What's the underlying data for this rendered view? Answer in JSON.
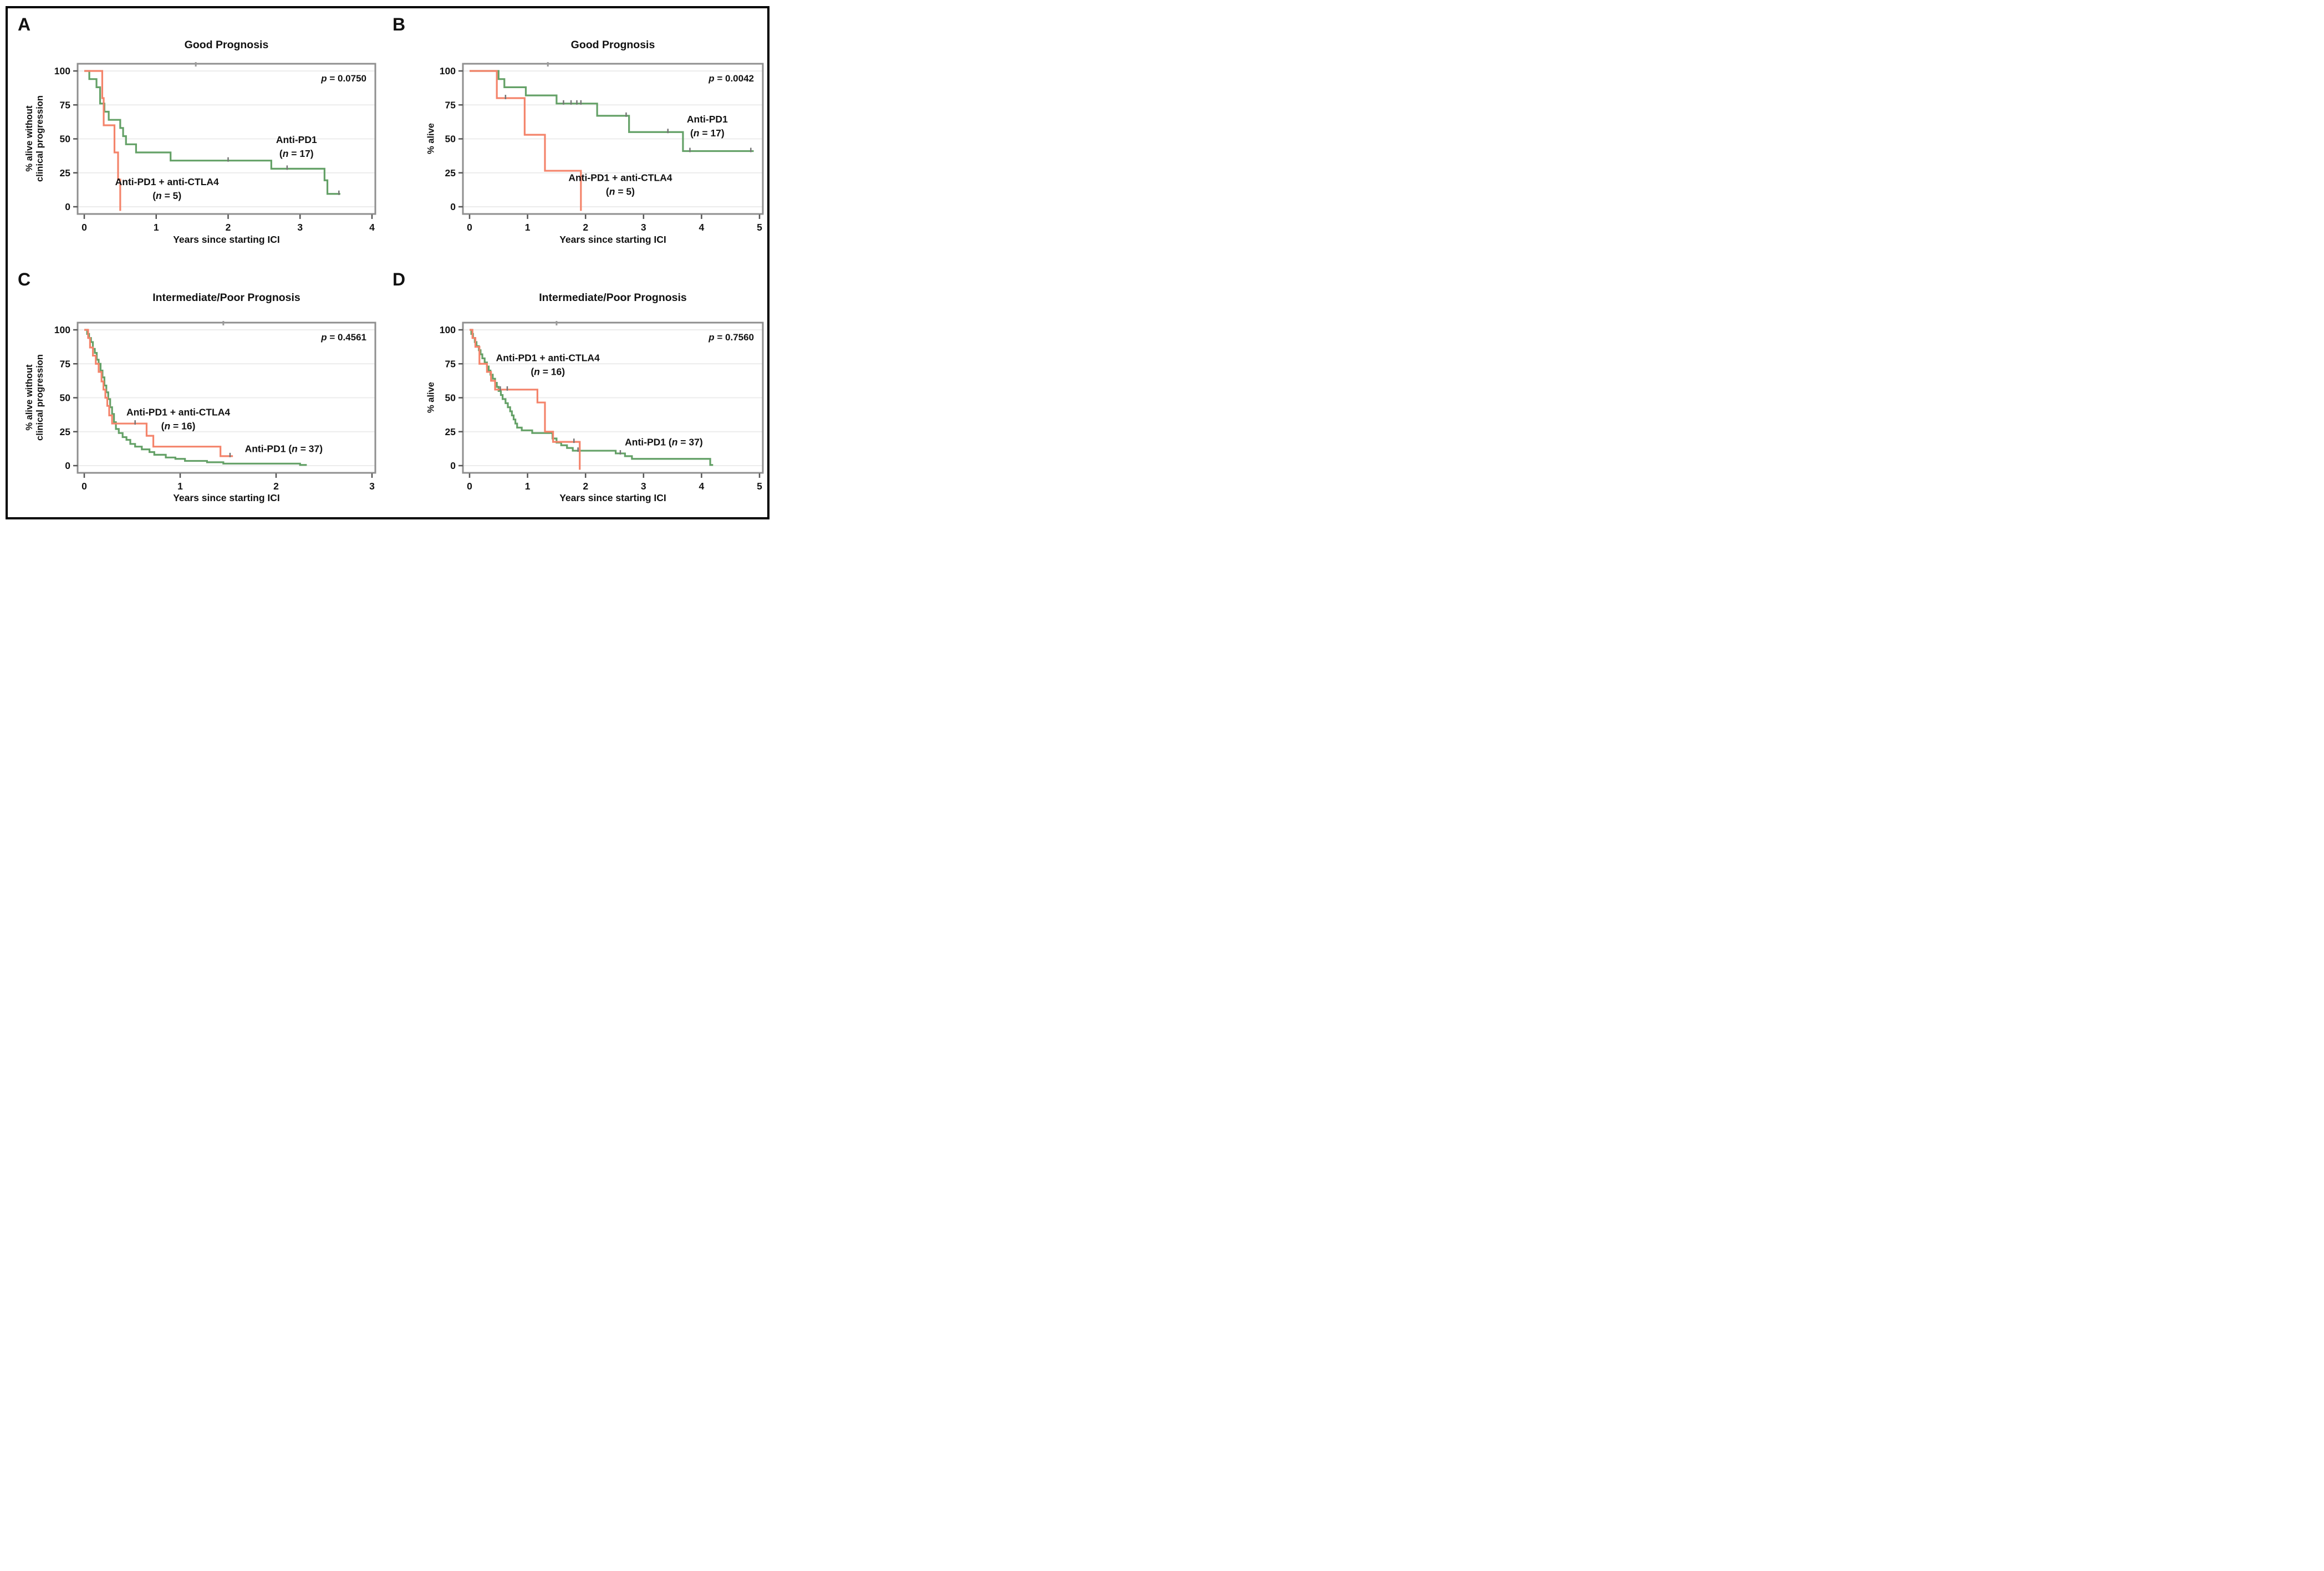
{
  "style": {
    "background": "#ffffff",
    "border_color": "#000000",
    "text_color": "#111111",
    "frame_color": "#8f8f8f",
    "grid_color": "#ececec",
    "censor_color": "#757575",
    "top_mark_color": "#9a9a9a",
    "axis_tick_color": "#555555",
    "green": "#64a167",
    "orange": "#f4846b"
  },
  "chart_data": [
    {
      "id": "A",
      "col": "A",
      "row": "r1",
      "type": "line",
      "km": true,
      "panel_label": "A",
      "title": "Good Prognosis",
      "p": "0.0750",
      "p_prefix": "p",
      "p_text": " = 0.0750",
      "xlabel": "Years since starting ICI",
      "ylabel_lines": [
        "% alive without",
        "clinical progression"
      ],
      "xlim": [
        0,
        4
      ],
      "xticks": [
        0,
        1,
        2,
        3,
        4
      ],
      "ylim": [
        0,
        100
      ],
      "yticks": [
        0,
        25,
        50,
        75,
        100
      ],
      "grid": true,
      "legend": "inline-annotations",
      "top_mark_x": 1.55,
      "series": [
        {
          "name": "Anti-PD1",
          "n": 17,
          "color": "#64a167",
          "points": [
            [
              0,
              100
            ],
            [
              0.07,
              94
            ],
            [
              0.17,
              88
            ],
            [
              0.22,
              76
            ],
            [
              0.28,
              70
            ],
            [
              0.34,
              64
            ],
            [
              0.5,
              58
            ],
            [
              0.54,
              52
            ],
            [
              0.58,
              46
            ],
            [
              0.72,
              40
            ],
            [
              1.2,
              34
            ],
            [
              2.6,
              28
            ],
            [
              3.34,
              19.5
            ],
            [
              3.38,
              9.5
            ],
            [
              3.56,
              9.5
            ]
          ],
          "censors": [
            [
              2.0,
              34
            ],
            [
              2.82,
              28
            ],
            [
              3.54,
              9.5
            ]
          ]
        },
        {
          "name": "Anti-PD1 + anti-CTLA4",
          "n": 5,
          "color": "#f4846b",
          "points": [
            [
              0,
              100
            ],
            [
              0.25,
              80
            ],
            [
              0.27,
              60
            ],
            [
              0.42,
              40
            ],
            [
              0.47,
              20
            ],
            [
              0.5,
              -3
            ]
          ],
          "censors": []
        }
      ],
      "labels": [
        {
          "text": "Anti-PD1",
          "n": "17",
          "layout": "stacked",
          "x": 2.95,
          "y": 47
        },
        {
          "text": "Anti-PD1 + anti-CTLA4",
          "n": "5",
          "layout": "stacked",
          "x": 1.15,
          "y": 16
        }
      ]
    },
    {
      "id": "B",
      "col": "B",
      "row": "r1",
      "type": "line",
      "km": true,
      "panel_label": "B",
      "title": "Good Prognosis",
      "p": "0.0042",
      "p_prefix": "p",
      "p_text": " = 0.0042",
      "xlabel": "Years since starting ICI",
      "ylabel_lines": [
        "% alive"
      ],
      "xlim": [
        0,
        5
      ],
      "xticks": [
        0,
        1,
        2,
        3,
        4,
        5
      ],
      "ylim": [
        0,
        100
      ],
      "yticks": [
        0,
        25,
        50,
        75,
        100
      ],
      "grid": true,
      "legend": "inline-annotations",
      "top_mark_x": 1.35,
      "series": [
        {
          "name": "Anti-PD1",
          "n": 17,
          "color": "#64a167",
          "points": [
            [
              0,
              100
            ],
            [
              0.5,
              94
            ],
            [
              0.6,
              88
            ],
            [
              0.97,
              82
            ],
            [
              1.5,
              76
            ],
            [
              2.2,
              67
            ],
            [
              2.75,
              55
            ],
            [
              3.68,
              41
            ],
            [
              4.9,
              41
            ]
          ],
          "censors": [
            [
              1.62,
              76
            ],
            [
              1.75,
              76
            ],
            [
              1.85,
              76
            ],
            [
              1.92,
              76
            ],
            [
              2.7,
              67
            ],
            [
              3.42,
              55
            ],
            [
              3.8,
              41
            ],
            [
              4.85,
              41
            ]
          ]
        },
        {
          "name": "Anti-PD1 + anti-CTLA4",
          "n": 5,
          "color": "#f4846b",
          "points": [
            [
              0,
              100
            ],
            [
              0.47,
              80
            ],
            [
              0.95,
              53
            ],
            [
              1.3,
              26.5
            ],
            [
              1.92,
              -3
            ]
          ],
          "censors": [
            [
              0.62,
              80
            ]
          ]
        }
      ],
      "labels": [
        {
          "text": "Anti-PD1",
          "n": "17",
          "layout": "stacked",
          "x": 4.1,
          "y": 62
        },
        {
          "text": "Anti-PD1 + anti-CTLA4",
          "n": "5",
          "layout": "stacked",
          "x": 2.6,
          "y": 19
        }
      ]
    },
    {
      "id": "C",
      "col": "A",
      "row": "r2",
      "type": "line",
      "km": true,
      "panel_label": "C",
      "title": "Intermediate/Poor Prognosis",
      "p": "0.4561",
      "p_prefix": "p",
      "p_text": " = 0.4561",
      "xlabel": "Years since starting ICI",
      "ylabel_lines": [
        "% alive without",
        "clinical progression"
      ],
      "xlim": [
        0,
        3
      ],
      "xticks": [
        0,
        1,
        2,
        3
      ],
      "ylim": [
        0,
        100
      ],
      "yticks": [
        0,
        25,
        50,
        75,
        100
      ],
      "grid": true,
      "legend": "inline-annotations",
      "top_mark_x": 1.45,
      "series": [
        {
          "name": "Anti-PD1",
          "n": 37,
          "color": "#64a167",
          "points": [
            [
              0,
              100
            ],
            [
              0.03,
              97
            ],
            [
              0.05,
              94
            ],
            [
              0.07,
              91
            ],
            [
              0.09,
              86
            ],
            [
              0.11,
              83
            ],
            [
              0.13,
              78
            ],
            [
              0.15,
              75
            ],
            [
              0.17,
              70
            ],
            [
              0.19,
              65
            ],
            [
              0.21,
              59
            ],
            [
              0.23,
              54
            ],
            [
              0.25,
              49
            ],
            [
              0.27,
              43
            ],
            [
              0.29,
              38
            ],
            [
              0.31,
              32
            ],
            [
              0.33,
              27
            ],
            [
              0.36,
              24
            ],
            [
              0.4,
              21
            ],
            [
              0.44,
              19
            ],
            [
              0.48,
              16
            ],
            [
              0.53,
              14
            ],
            [
              0.6,
              12
            ],
            [
              0.68,
              10
            ],
            [
              0.73,
              8
            ],
            [
              0.85,
              6
            ],
            [
              0.95,
              5
            ],
            [
              1.05,
              3.5
            ],
            [
              1.28,
              2.5
            ],
            [
              1.45,
              1.5
            ],
            [
              2.25,
              0.5
            ],
            [
              2.32,
              0.5
            ]
          ],
          "censors": []
        },
        {
          "name": "Anti-PD1 + anti-CTLA4",
          "n": 16,
          "color": "#f4846b",
          "points": [
            [
              0,
              100
            ],
            [
              0.04,
              94
            ],
            [
              0.06,
              87
            ],
            [
              0.09,
              81
            ],
            [
              0.12,
              75
            ],
            [
              0.15,
              69
            ],
            [
              0.18,
              62
            ],
            [
              0.2,
              56
            ],
            [
              0.22,
              50
            ],
            [
              0.24,
              44
            ],
            [
              0.26,
              37
            ],
            [
              0.29,
              31
            ],
            [
              0.65,
              22
            ],
            [
              0.72,
              14
            ],
            [
              1.42,
              7
            ],
            [
              1.55,
              7
            ]
          ],
          "censors": [
            [
              0.53,
              31
            ],
            [
              1.52,
              7
            ]
          ]
        }
      ],
      "labels": [
        {
          "text": "Anti-PD1 + anti-CTLA4",
          "n": "16",
          "layout": "stacked",
          "x": 0.98,
          "y": 37
        },
        {
          "text": "Anti-PD1",
          "n": "37",
          "layout": "inline",
          "x": 2.08,
          "y": 10
        }
      ]
    },
    {
      "id": "D",
      "col": "B",
      "row": "r2",
      "type": "line",
      "km": true,
      "panel_label": "D",
      "title": "Intermediate/Poor Prognosis",
      "p": "0.7560",
      "p_prefix": "p",
      "p_text": " = 0.7560",
      "xlabel": "Years since starting ICI",
      "ylabel_lines": [
        "% alive"
      ],
      "xlim": [
        0,
        5
      ],
      "xticks": [
        0,
        1,
        2,
        3,
        4,
        5
      ],
      "ylim": [
        0,
        100
      ],
      "yticks": [
        0,
        25,
        50,
        75,
        100
      ],
      "grid": true,
      "legend": "inline-annotations",
      "top_mark_x": 1.5,
      "series": [
        {
          "name": "Anti-PD1",
          "n": 37,
          "color": "#64a167",
          "points": [
            [
              0,
              100
            ],
            [
              0.03,
              97
            ],
            [
              0.06,
              94
            ],
            [
              0.09,
              91
            ],
            [
              0.12,
              88
            ],
            [
              0.16,
              85
            ],
            [
              0.19,
              82
            ],
            [
              0.22,
              79
            ],
            [
              0.26,
              76
            ],
            [
              0.3,
              73
            ],
            [
              0.33,
              70
            ],
            [
              0.36,
              67
            ],
            [
              0.4,
              64
            ],
            [
              0.44,
              61
            ],
            [
              0.47,
              58
            ],
            [
              0.5,
              55
            ],
            [
              0.54,
              52
            ],
            [
              0.57,
              49
            ],
            [
              0.62,
              46
            ],
            [
              0.66,
              43
            ],
            [
              0.7,
              40
            ],
            [
              0.73,
              37
            ],
            [
              0.76,
              34
            ],
            [
              0.79,
              31
            ],
            [
              0.82,
              28
            ],
            [
              0.9,
              26
            ],
            [
              1.08,
              24
            ],
            [
              1.43,
              20
            ],
            [
              1.5,
              17
            ],
            [
              1.58,
              15
            ],
            [
              1.68,
              13
            ],
            [
              1.78,
              11
            ],
            [
              2.52,
              9
            ],
            [
              2.68,
              7
            ],
            [
              2.8,
              5
            ],
            [
              4.12,
              5
            ],
            [
              4.15,
              0.5
            ],
            [
              4.2,
              0.5
            ]
          ],
          "censors": [
            [
              1.87,
              11
            ],
            [
              2.6,
              9
            ]
          ]
        },
        {
          "name": "Anti-PD1 + anti-CTLA4",
          "n": 16,
          "color": "#f4846b",
          "points": [
            [
              0,
              100
            ],
            [
              0.05,
              94
            ],
            [
              0.1,
              87.5
            ],
            [
              0.17,
              75
            ],
            [
              0.3,
              69
            ],
            [
              0.37,
              62.5
            ],
            [
              0.44,
              56
            ],
            [
              1.17,
              46.5
            ],
            [
              1.3,
              25
            ],
            [
              1.44,
              17.5
            ],
            [
              1.9,
              -3
            ]
          ],
          "censors": [
            [
              0.53,
              56
            ],
            [
              0.65,
              56
            ],
            [
              1.8,
              17.5
            ]
          ]
        }
      ],
      "labels": [
        {
          "text": "Anti-PD1 + anti-CTLA4",
          "n": "16",
          "layout": "stacked",
          "x": 1.35,
          "y": 77
        },
        {
          "text": "Anti-PD1",
          "n": "37",
          "layout": "inline",
          "x": 3.35,
          "y": 15
        }
      ]
    }
  ]
}
